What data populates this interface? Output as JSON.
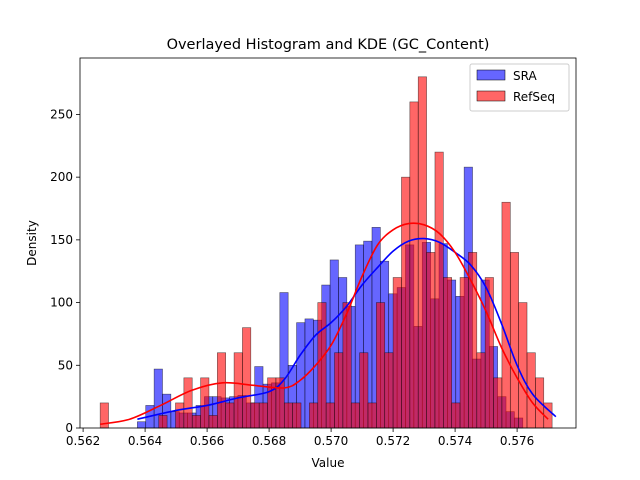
{
  "chart_data": {
    "type": "histogram",
    "title": "Overlayed Histogram and KDE (GC_Content)",
    "xlabel": "Value",
    "ylabel": "Density",
    "xlim": [
      0.5619,
      0.5779
    ],
    "ylim": [
      0,
      295
    ],
    "xticks": [
      0.562,
      0.564,
      0.566,
      0.568,
      0.57,
      0.572,
      0.574,
      0.576
    ],
    "xtick_labels": [
      "0.562",
      "0.564",
      "0.566",
      "0.568",
      "0.570",
      "0.572",
      "0.574",
      "0.576"
    ],
    "yticks": [
      0,
      50,
      100,
      150,
      200,
      250
    ],
    "ytick_labels": [
      "0",
      "50",
      "100",
      "150",
      "200",
      "250"
    ],
    "grid": false,
    "legend_position": "top-right",
    "series": [
      {
        "name": "SRA",
        "kind": "histogram",
        "color": "#0000ff",
        "bin_start": 0.56375,
        "bin_width": 0.0002703,
        "values": [
          5,
          18,
          47,
          27,
          13,
          12,
          12,
          18,
          25,
          25,
          24,
          25,
          26,
          20,
          49,
          35,
          36,
          108,
          50,
          84,
          87,
          86,
          114,
          134,
          120,
          97,
          146,
          149,
          160,
          133,
          107,
          112,
          146,
          81,
          148,
          103,
          147,
          118,
          105,
          208,
          55,
          118,
          65,
          25,
          13,
          8
        ]
      },
      {
        "name": "RefSeq",
        "kind": "histogram",
        "color": "#ff0000",
        "bin_start": 0.56255,
        "bin_width": 0.00027,
        "values": [
          20,
          0,
          0,
          0,
          0,
          0,
          0,
          10,
          0,
          20,
          40,
          10,
          40,
          10,
          60,
          20,
          60,
          80,
          20,
          20,
          40,
          40,
          20,
          20,
          0,
          20,
          100,
          20,
          60,
          100,
          20,
          60,
          20,
          100,
          60,
          120,
          200,
          260,
          280,
          140,
          220,
          120,
          20,
          120,
          140,
          60,
          120,
          40,
          180,
          140,
          100,
          60,
          40,
          20
        ]
      },
      {
        "name": "SRA KDE",
        "kind": "line",
        "color": "#0000ff",
        "x": [
          0.56375,
          0.565,
          0.566,
          0.567,
          0.568,
          0.5685,
          0.569,
          0.5695,
          0.57,
          0.5705,
          0.571,
          0.5715,
          0.572,
          0.5725,
          0.573,
          0.5735,
          0.574,
          0.5745,
          0.575,
          0.5755,
          0.576,
          0.5765,
          0.57725
        ],
        "y": [
          7,
          14,
          18,
          24,
          29,
          39,
          58,
          74,
          84,
          97,
          114,
          128,
          141,
          149,
          151,
          148,
          140,
          130,
          112,
          83,
          50,
          27,
          9
        ]
      },
      {
        "name": "RefSeq KDE",
        "kind": "line",
        "color": "#ff0000",
        "x": [
          0.56255,
          0.5635,
          0.5645,
          0.5655,
          0.5665,
          0.5675,
          0.5685,
          0.569,
          0.5695,
          0.57,
          0.5705,
          0.571,
          0.5715,
          0.572,
          0.5725,
          0.573,
          0.5735,
          0.574,
          0.5745,
          0.575,
          0.5755,
          0.576,
          0.5765,
          0.577
        ],
        "y": [
          3,
          7,
          18,
          30,
          36,
          34,
          32,
          38,
          50,
          66,
          91,
          121,
          146,
          158,
          163,
          162,
          155,
          140,
          118,
          93,
          64,
          40,
          20,
          7
        ]
      }
    ]
  }
}
